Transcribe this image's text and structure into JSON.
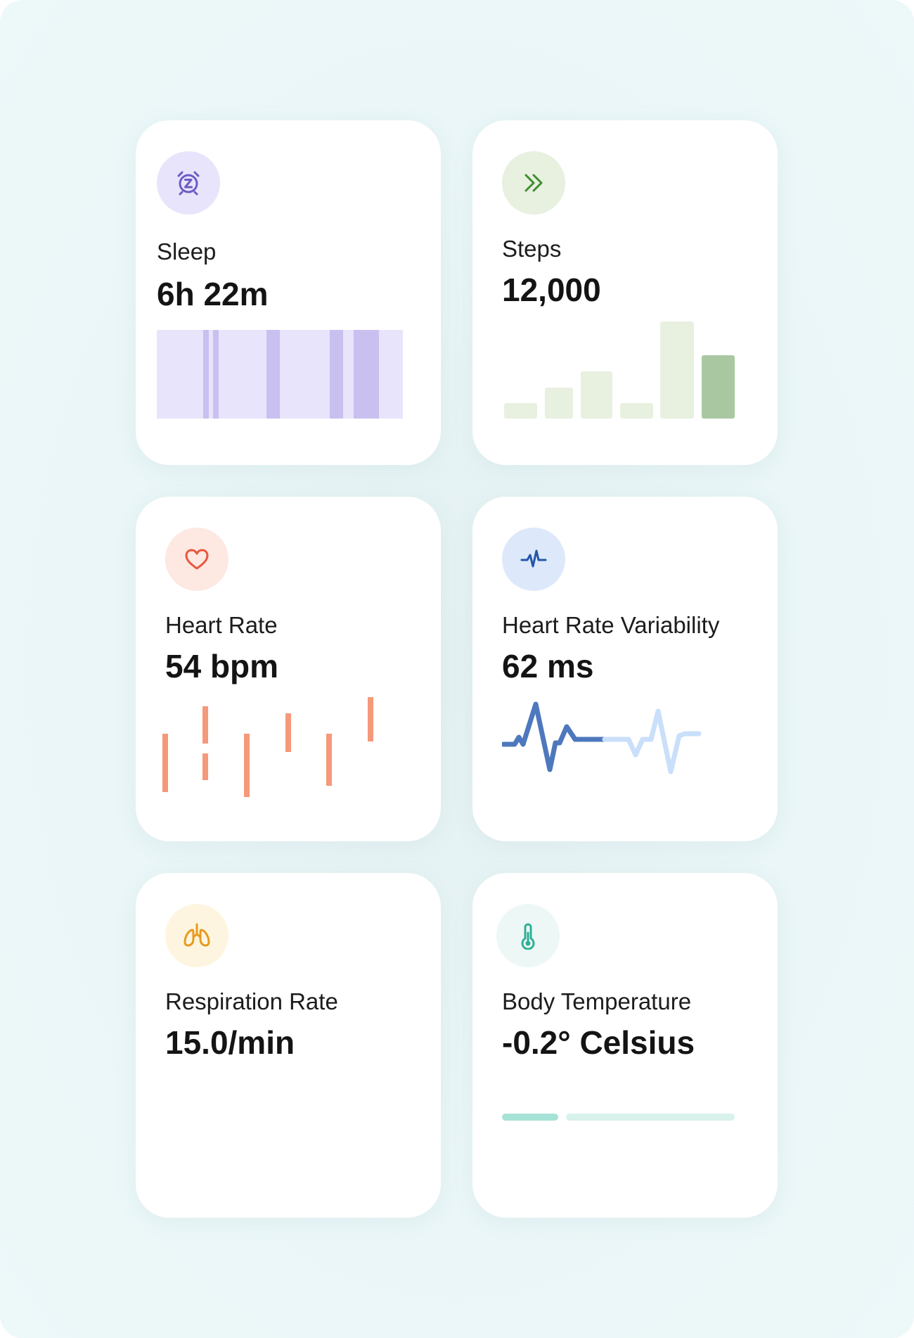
{
  "cards": {
    "sleep": {
      "label": "Sleep",
      "value": "6h 22m",
      "icon": "alarm-clock-sleep-icon",
      "accent": "#c9c0f0",
      "background": "#e8e4fb",
      "icon_color": "#6b5bc4"
    },
    "steps": {
      "label": "Steps",
      "value": "12,000",
      "icon": "double-chevron-right-icon",
      "accent": "#a9c8a2",
      "background": "#e8f0e0",
      "icon_color": "#3f8f2f"
    },
    "heart_rate": {
      "label": "Heart Rate",
      "value": "54 bpm",
      "icon": "heart-icon",
      "accent": "#f5997a",
      "background": "#fde8e2",
      "icon_color": "#e8573d"
    },
    "hrv": {
      "label": "Heart Rate Variability",
      "value": "62 ms",
      "icon": "pulse-icon",
      "accent": "#4e78bd",
      "background": "#dde9fb",
      "icon_color": "#2456a8"
    },
    "respiration": {
      "label": "Respiration Rate",
      "value": "15.0/min",
      "icon": "lungs-icon",
      "background": "#fdf5df",
      "icon_color": "#e89a1e"
    },
    "temperature": {
      "label": "Body Temperature",
      "value": "-0.2° Celsius",
      "icon": "thermometer-icon",
      "accent": "#a6e2d6",
      "background": "#edf8f6",
      "icon_color": "#2faf95"
    }
  }
}
